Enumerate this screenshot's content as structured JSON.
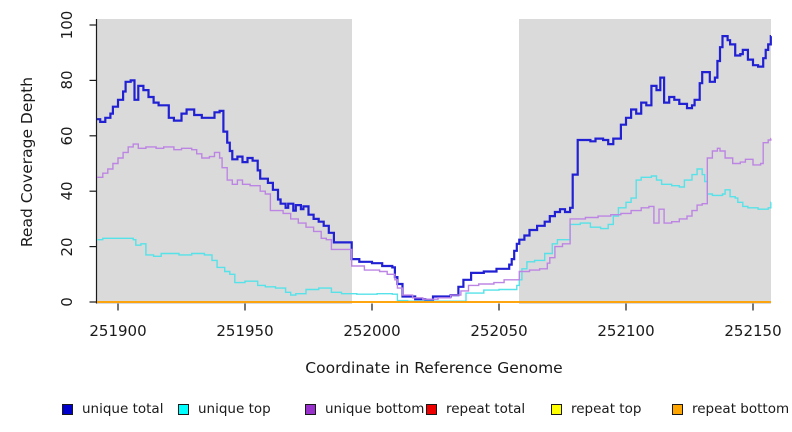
{
  "chart_data": {
    "type": "line",
    "step": "after",
    "xlabel": "Coordinate in Reference Genome",
    "ylabel": "Read Coverage Depth",
    "x_ticks": [
      251900,
      251950,
      252000,
      252050,
      252100,
      252150
    ],
    "y_ticks": [
      0,
      20,
      40,
      60,
      80,
      100
    ],
    "xlim": [
      251891.7,
      252157.3
    ],
    "ylim": [
      0,
      100
    ],
    "grid": false,
    "legend_position": "bottom",
    "plot_background": "#dadada",
    "highlight_band": {
      "x0": 251992,
      "x1": 252058,
      "color": "#ffffff"
    },
    "axis_color": "#1a1a1a",
    "series": [
      {
        "name": "unique total",
        "swatch": "#0000cd",
        "color": "#2121d3",
        "width": 2.2,
        "points": [
          [
            251892,
            66
          ],
          [
            251893,
            65
          ],
          [
            251895,
            66.5
          ],
          [
            251897,
            68
          ],
          [
            251898,
            70.5
          ],
          [
            251900,
            73
          ],
          [
            251902,
            76
          ],
          [
            251903,
            79.5
          ],
          [
            251905,
            80
          ],
          [
            251906.5,
            73
          ],
          [
            251908,
            78
          ],
          [
            251910,
            76.5
          ],
          [
            251912,
            74
          ],
          [
            251914,
            72
          ],
          [
            251916,
            71
          ],
          [
            251920,
            66.5
          ],
          [
            251922,
            65.5
          ],
          [
            251925,
            68
          ],
          [
            251927,
            69.5
          ],
          [
            251930,
            67.5
          ],
          [
            251933,
            66.5
          ],
          [
            251936,
            66.5
          ],
          [
            251938,
            68.5
          ],
          [
            251940,
            69
          ],
          [
            251941.5,
            61.5
          ],
          [
            251943,
            57.5
          ],
          [
            251944,
            54.5
          ],
          [
            251945,
            51.5
          ],
          [
            251947,
            52.5
          ],
          [
            251949,
            50.5
          ],
          [
            251951,
            52
          ],
          [
            251953,
            51
          ],
          [
            251955,
            47.5
          ],
          [
            251956,
            44.5
          ],
          [
            251959,
            43
          ],
          [
            251961,
            40.5
          ],
          [
            251963,
            37
          ],
          [
            251964,
            35.5
          ],
          [
            251966,
            34
          ],
          [
            251967,
            35.5
          ],
          [
            251969,
            33
          ],
          [
            251970,
            35
          ],
          [
            251972,
            33.5
          ],
          [
            251973,
            34.5
          ],
          [
            251975,
            31.5
          ],
          [
            251977,
            30
          ],
          [
            251979,
            29
          ],
          [
            251981,
            27.5
          ],
          [
            251983,
            25
          ],
          [
            251985,
            21.5
          ],
          [
            251992,
            15.5
          ],
          [
            251995,
            14.5
          ],
          [
            252000,
            14
          ],
          [
            252004,
            13
          ],
          [
            252008,
            12.5
          ],
          [
            252009,
            9
          ],
          [
            252010,
            6.5
          ],
          [
            252012,
            2
          ],
          [
            252017,
            1
          ],
          [
            252021,
            0.5
          ],
          [
            252024,
            2
          ],
          [
            252031,
            2.5
          ],
          [
            252034,
            5.5
          ],
          [
            252036,
            8
          ],
          [
            252039,
            10.5
          ],
          [
            252044,
            11
          ],
          [
            252049,
            12
          ],
          [
            252054,
            13.5
          ],
          [
            252055,
            15.5
          ],
          [
            252056,
            18.5
          ],
          [
            252057,
            21
          ],
          [
            252058,
            22.5
          ],
          [
            252060,
            24
          ],
          [
            252062,
            26
          ],
          [
            252065,
            27.5
          ],
          [
            252068,
            29
          ],
          [
            252070,
            31
          ],
          [
            252072,
            32.5
          ],
          [
            252074,
            33.5
          ],
          [
            252076,
            32.5
          ],
          [
            252078,
            34
          ],
          [
            252079,
            46
          ],
          [
            252081,
            58.5
          ],
          [
            252086,
            58
          ],
          [
            252088,
            59
          ],
          [
            252091,
            58.5
          ],
          [
            252093,
            57
          ],
          [
            252095,
            59
          ],
          [
            252098,
            64
          ],
          [
            252100,
            66.5
          ],
          [
            252102,
            69.5
          ],
          [
            252104,
            68
          ],
          [
            252106,
            72
          ],
          [
            252108,
            71
          ],
          [
            252110,
            78
          ],
          [
            252112,
            76.5
          ],
          [
            252113.5,
            81
          ],
          [
            252115,
            72
          ],
          [
            252117,
            74
          ],
          [
            252119,
            73
          ],
          [
            252121,
            71.5
          ],
          [
            252124,
            70
          ],
          [
            252126,
            71
          ],
          [
            252127,
            73
          ],
          [
            252129,
            79
          ],
          [
            252130,
            83
          ],
          [
            252132,
            83
          ],
          [
            252133,
            79.5
          ],
          [
            252135,
            81
          ],
          [
            252136,
            87
          ],
          [
            252137,
            92
          ],
          [
            252138,
            96
          ],
          [
            252140,
            94.5
          ],
          [
            252141,
            93
          ],
          [
            252143,
            89
          ],
          [
            252145,
            89.5
          ],
          [
            252146,
            91
          ],
          [
            252148,
            87.5
          ],
          [
            252150,
            85.5
          ],
          [
            252152,
            85
          ],
          [
            252154,
            88
          ],
          [
            252155,
            91
          ],
          [
            252156,
            93
          ],
          [
            252157,
            96
          ]
        ]
      },
      {
        "name": "unique top",
        "swatch": "#00ffff",
        "color": "#55e2e8",
        "width": 1.4,
        "points": [
          [
            251892,
            22.5
          ],
          [
            251894,
            23
          ],
          [
            251900,
            23
          ],
          [
            251906,
            22.5
          ],
          [
            251907,
            20.5
          ],
          [
            251909,
            21
          ],
          [
            251911,
            17
          ],
          [
            251914,
            16.5
          ],
          [
            251917,
            17.5
          ],
          [
            251924,
            17
          ],
          [
            251929,
            17.5
          ],
          [
            251934,
            17
          ],
          [
            251937,
            15
          ],
          [
            251939,
            12.5
          ],
          [
            251942,
            11
          ],
          [
            251944,
            10
          ],
          [
            251946,
            7
          ],
          [
            251950,
            7.5
          ],
          [
            251955,
            6
          ],
          [
            251958,
            5.5
          ],
          [
            251962,
            5
          ],
          [
            251966,
            3.5
          ],
          [
            251968,
            2.5
          ],
          [
            251970,
            3
          ],
          [
            251974,
            4.5
          ],
          [
            251979,
            5
          ],
          [
            251984,
            3.5
          ],
          [
            251988,
            3
          ],
          [
            251994,
            2.8
          ],
          [
            252002,
            3
          ],
          [
            252008,
            2.8
          ],
          [
            252010,
            0.5
          ],
          [
            252014,
            0.3
          ],
          [
            252037,
            3.2
          ],
          [
            252044,
            4.3
          ],
          [
            252050,
            4.5
          ],
          [
            252057,
            6
          ],
          [
            252058,
            8
          ],
          [
            252059,
            12
          ],
          [
            252061,
            14.5
          ],
          [
            252064,
            15
          ],
          [
            252068,
            17.5
          ],
          [
            252071,
            21
          ],
          [
            252073,
            22.5
          ],
          [
            252078,
            28
          ],
          [
            252082,
            28.5
          ],
          [
            252086,
            27
          ],
          [
            252090,
            26.5
          ],
          [
            252093,
            28
          ],
          [
            252095,
            31
          ],
          [
            252097,
            34
          ],
          [
            252100,
            36
          ],
          [
            252102,
            37.5
          ],
          [
            252104,
            44
          ],
          [
            252106,
            45
          ],
          [
            252110,
            45.5
          ],
          [
            252112,
            44
          ],
          [
            252114,
            42.5
          ],
          [
            252118,
            42
          ],
          [
            252121,
            41.5
          ],
          [
            252123,
            44
          ],
          [
            252126,
            46
          ],
          [
            252128,
            48
          ],
          [
            252130,
            46
          ],
          [
            252131,
            43.5
          ],
          [
            252132,
            39
          ],
          [
            252134,
            38.5
          ],
          [
            252138,
            39
          ],
          [
            252139,
            40.5
          ],
          [
            252141,
            38
          ],
          [
            252143,
            37.5
          ],
          [
            252144,
            36
          ],
          [
            252146,
            34.5
          ],
          [
            252148,
            34
          ],
          [
            252152,
            33.5
          ],
          [
            252156,
            34
          ],
          [
            252157,
            36
          ]
        ]
      },
      {
        "name": "unique bottom",
        "swatch": "#9932cc",
        "color": "#bd85e3",
        "width": 1.4,
        "points": [
          [
            251892,
            45
          ],
          [
            251894,
            46.5
          ],
          [
            251896,
            48
          ],
          [
            251898,
            50
          ],
          [
            251900,
            52
          ],
          [
            251902,
            54
          ],
          [
            251904,
            56
          ],
          [
            251906,
            57
          ],
          [
            251908,
            55.5
          ],
          [
            251911,
            56
          ],
          [
            251915,
            55.5
          ],
          [
            251918,
            56
          ],
          [
            251922,
            55
          ],
          [
            251925,
            55.5
          ],
          [
            251929,
            55
          ],
          [
            251931,
            53.5
          ],
          [
            251933,
            52
          ],
          [
            251936,
            52.5
          ],
          [
            251938,
            54
          ],
          [
            251940,
            52
          ],
          [
            251941,
            48.5
          ],
          [
            251943,
            44
          ],
          [
            251945,
            42.5
          ],
          [
            251947,
            44
          ],
          [
            251949,
            42.5
          ],
          [
            251952,
            42
          ],
          [
            251956,
            40
          ],
          [
            251958,
            39
          ],
          [
            251960,
            33
          ],
          [
            251965,
            32
          ],
          [
            251968,
            30
          ],
          [
            251971,
            28.5
          ],
          [
            251974,
            27
          ],
          [
            251977,
            25.5
          ],
          [
            251980,
            23
          ],
          [
            251982,
            22.5
          ],
          [
            251984,
            19
          ],
          [
            251992,
            13
          ],
          [
            251997,
            11.5
          ],
          [
            252003,
            11
          ],
          [
            252006,
            10
          ],
          [
            252009,
            8
          ],
          [
            252010,
            5
          ],
          [
            252012,
            2.5
          ],
          [
            252016,
            1.5
          ],
          [
            252020,
            1
          ],
          [
            252026,
            1.5
          ],
          [
            252031,
            2.5
          ],
          [
            252035,
            4
          ],
          [
            252038,
            6
          ],
          [
            252042,
            6.5
          ],
          [
            252048,
            7
          ],
          [
            252052,
            8
          ],
          [
            252058,
            11
          ],
          [
            252062,
            11.5
          ],
          [
            252066,
            12
          ],
          [
            252069,
            14
          ],
          [
            252070,
            16
          ],
          [
            252072,
            20
          ],
          [
            252075,
            21
          ],
          [
            252078,
            30
          ],
          [
            252084,
            30.5
          ],
          [
            252089,
            31
          ],
          [
            252094,
            31.5
          ],
          [
            252098,
            32
          ],
          [
            252102,
            33
          ],
          [
            252106,
            34
          ],
          [
            252109,
            34.5
          ],
          [
            252111,
            28.5
          ],
          [
            252113,
            33.5
          ],
          [
            252115,
            28.5
          ],
          [
            252118,
            29
          ],
          [
            252121,
            30
          ],
          [
            252124,
            31
          ],
          [
            252126,
            33
          ],
          [
            252128,
            35
          ],
          [
            252130,
            35.5
          ],
          [
            252132,
            52
          ],
          [
            252134,
            54.5
          ],
          [
            252136,
            55.5
          ],
          [
            252137,
            54.5
          ],
          [
            252139,
            52
          ],
          [
            252142,
            50
          ],
          [
            252145,
            50.5
          ],
          [
            252147,
            51.5
          ],
          [
            252150,
            49.5
          ],
          [
            252153,
            50
          ],
          [
            252154,
            57.5
          ],
          [
            252156,
            58.5
          ],
          [
            252157,
            59
          ]
        ]
      },
      {
        "name": "repeat total",
        "swatch": "#ee0000",
        "color": "#ee0000",
        "width": 1.4,
        "points": [
          [
            251891.7,
            0
          ],
          [
            252157.3,
            0
          ]
        ]
      },
      {
        "name": "repeat top",
        "swatch": "#ffff00",
        "color": "#ffff00",
        "width": 1.4,
        "points": [
          [
            251891.7,
            0
          ],
          [
            252157.3,
            0
          ]
        ]
      },
      {
        "name": "repeat bottom",
        "swatch": "#ffa500",
        "color": "#ff9e00",
        "width": 1.6,
        "points": [
          [
            251891.7,
            0
          ],
          [
            252157.3,
            0
          ]
        ]
      }
    ]
  }
}
